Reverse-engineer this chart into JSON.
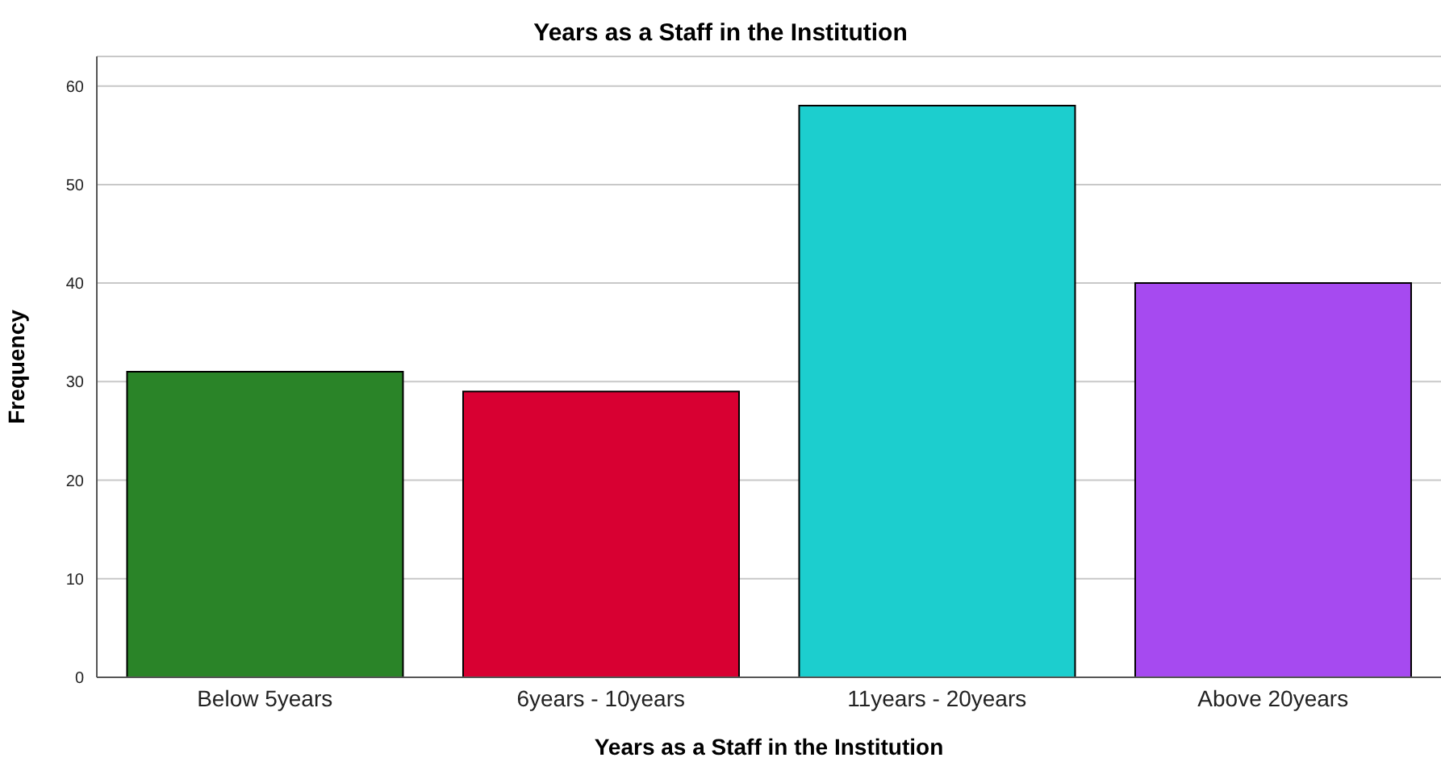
{
  "chart_data": {
    "type": "bar",
    "title": "Years as a Staff in the Institution",
    "xlabel": "Years as a Staff in the Institution",
    "ylabel": "Frequency",
    "categories": [
      "Below 5years",
      "6years - 10years",
      "11years - 20years",
      "Above 20years"
    ],
    "values": [
      31,
      29,
      58,
      40
    ],
    "colors": [
      "#2a8428",
      "#d80032",
      "#1ccece",
      "#a64af0"
    ],
    "ylim": [
      0,
      63
    ],
    "yticks": [
      0,
      10,
      20,
      30,
      40,
      50,
      60
    ],
    "grid": "y"
  }
}
